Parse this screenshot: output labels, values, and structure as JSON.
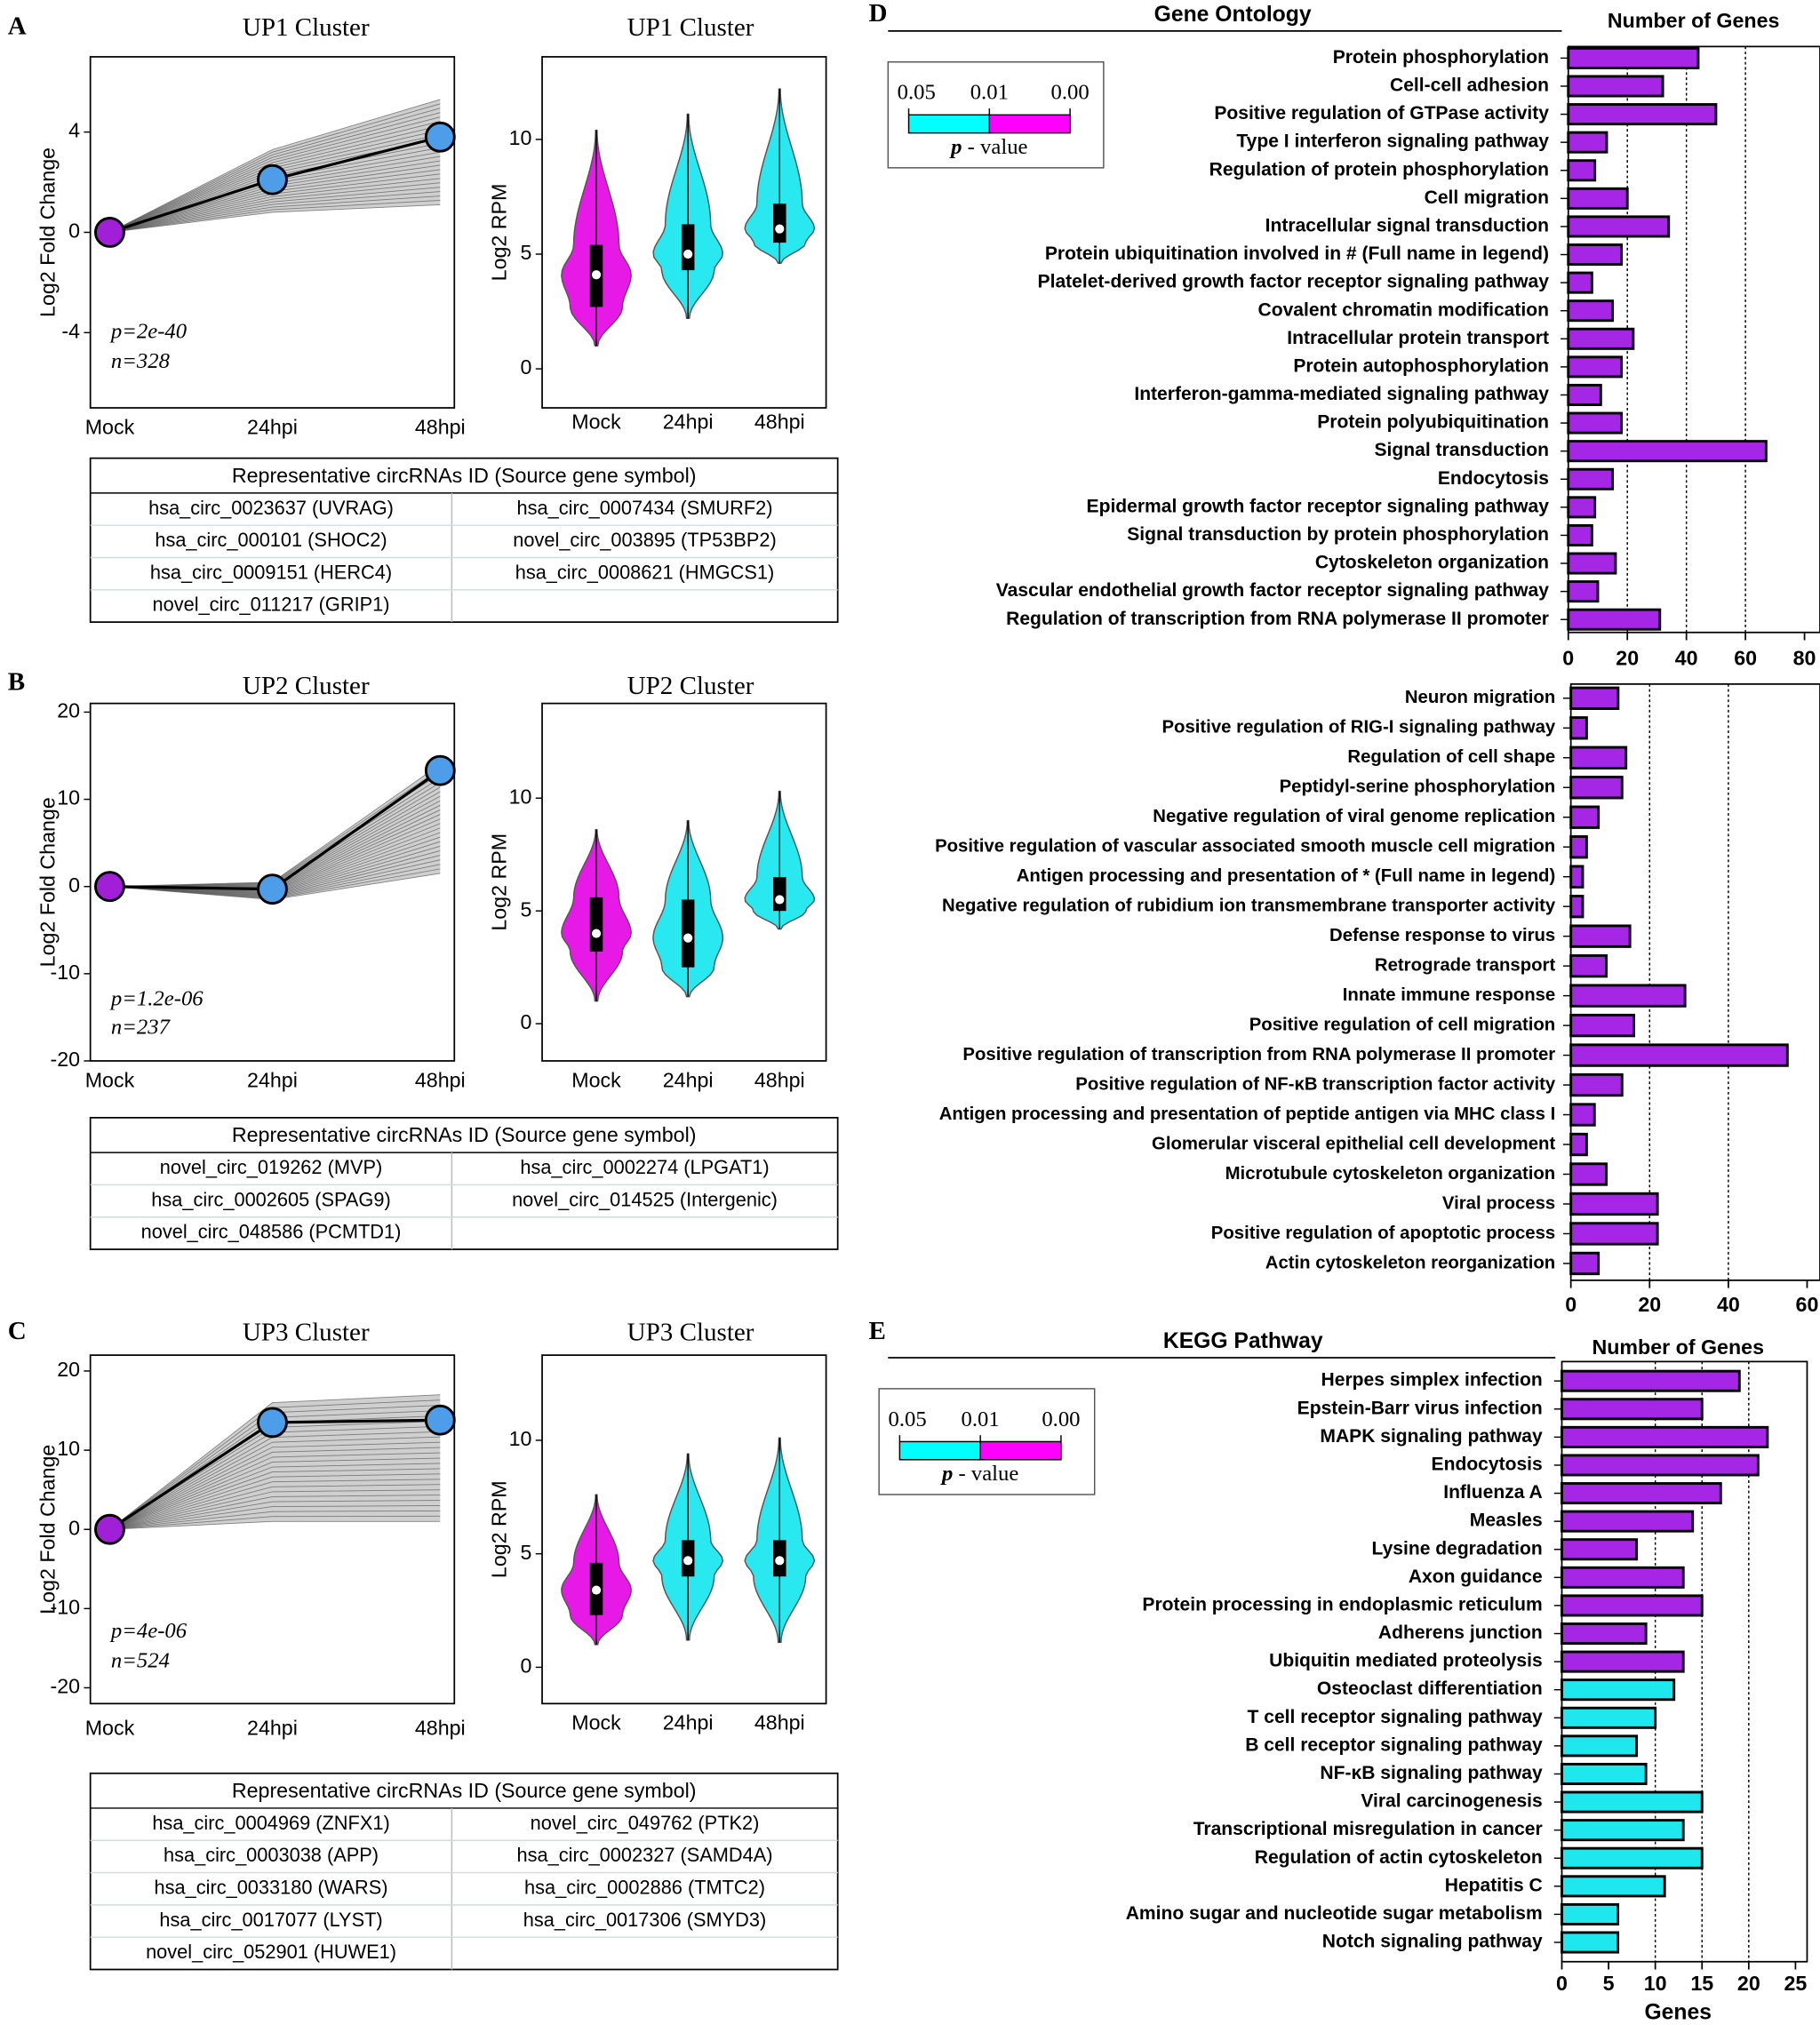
{
  "panel_labels": [
    "A",
    "B",
    "C",
    "D",
    "E"
  ],
  "chart_data": [
    {
      "type": "line",
      "title": "UP1 Cluster",
      "ylabel": "Log2 Fold Change",
      "categories": [
        "Mock",
        "24hpi",
        "48hpi"
      ],
      "values": [
        0,
        2.1,
        3.8
      ],
      "range_low": [
        0,
        0.8,
        1.1
      ],
      "range_high": [
        0,
        3.3,
        5.3
      ],
      "point_colors": [
        "#a21fd8",
        "#4d9de8",
        "#4d9de8"
      ],
      "annotations": [
        "p=2e-40",
        "n=328"
      ],
      "ylim": [
        -7,
        7
      ],
      "yticks": [
        -4,
        0,
        4
      ]
    },
    {
      "type": "violin",
      "title": "UP1 Cluster",
      "ylabel": "Log2 RPM",
      "categories": [
        "Mock",
        "24hpi",
        "48hpi"
      ],
      "min": [
        1.0,
        2.2,
        4.6
      ],
      "q1": [
        2.7,
        4.3,
        5.5
      ],
      "median": [
        4.1,
        5.0,
        6.1
      ],
      "q3": [
        5.4,
        6.3,
        7.2
      ],
      "max": [
        10.4,
        11.1,
        12.2
      ],
      "colors": [
        "#e619e6",
        "#2ae8f0",
        "#2ae8f0"
      ],
      "ylim": [
        -1.7,
        13.6
      ],
      "yticks": [
        0,
        5,
        10
      ]
    },
    {
      "type": "line",
      "title": "UP2 Cluster",
      "ylabel": "Log2 Fold Change",
      "categories": [
        "Mock",
        "24hpi",
        "48hpi"
      ],
      "values": [
        0,
        -0.3,
        13.3
      ],
      "range_low": [
        0,
        -1.5,
        1.5
      ],
      "range_high": [
        0,
        0.5,
        14
      ],
      "point_colors": [
        "#a21fd8",
        "#4d9de8",
        "#4d9de8"
      ],
      "annotations": [
        "p=1.2e-06",
        "n=237"
      ],
      "ylim": [
        -20,
        21
      ],
      "yticks": [
        -20,
        -10,
        0,
        10,
        20
      ]
    },
    {
      "type": "violin",
      "title": "UP2  Cluster",
      "ylabel": "Log2 RPM",
      "categories": [
        "Mock",
        "24hpi",
        "48hpi"
      ],
      "min": [
        1.0,
        1.2,
        4.2
      ],
      "q1": [
        3.2,
        2.5,
        5.0
      ],
      "median": [
        4.0,
        3.8,
        5.5
      ],
      "q3": [
        5.6,
        5.5,
        6.5
      ],
      "max": [
        8.6,
        9.0,
        10.3
      ],
      "colors": [
        "#e619e6",
        "#2ae8f0",
        "#2ae8f0"
      ],
      "ylim": [
        -1.65,
        14.2
      ],
      "yticks": [
        0,
        5,
        10
      ]
    },
    {
      "type": "line",
      "title": "UP3 Cluster",
      "ylabel": "Log2 Fold Change",
      "categories": [
        "Mock",
        "24hpi",
        "48hpi"
      ],
      "values": [
        0,
        13.5,
        13.8
      ],
      "range_low": [
        0,
        1,
        1
      ],
      "range_high": [
        0,
        16,
        17
      ],
      "point_colors": [
        "#a21fd8",
        "#4d9de8",
        "#4d9de8"
      ],
      "annotations": [
        "p=4e-06",
        "n=524"
      ],
      "ylim": [
        -22,
        22
      ],
      "yticks": [
        -20,
        -10,
        0,
        10,
        20
      ]
    },
    {
      "type": "violin",
      "title": "UP3 Cluster",
      "ylabel": "Log2 RPM",
      "categories": [
        "Mock",
        "24hpi",
        "48hpi"
      ],
      "min": [
        1.0,
        1.2,
        1.1
      ],
      "q1": [
        2.3,
        4.0,
        4.0
      ],
      "median": [
        3.4,
        4.7,
        4.7
      ],
      "q3": [
        4.6,
        5.6,
        5.6
      ],
      "max": [
        7.6,
        9.4,
        10.1
      ],
      "colors": [
        "#e619e6",
        "#2ae8f0",
        "#2ae8f0"
      ],
      "ylim": [
        -1.6,
        13.75
      ],
      "yticks": [
        0,
        5,
        10
      ]
    },
    {
      "type": "hbar",
      "title": "Gene Ontology",
      "xlabel_top": "Number of Genes",
      "categories": [
        "Protein phosphorylation",
        "Cell-cell adhesion",
        "Positive regulation of GTPase activity",
        "Type I interferon signaling pathway",
        "Regulation of protein phosphorylation",
        "Cell migration",
        "Intracellular signal transduction",
        "Protein ubiquitination involved in # (Full name in legend)",
        "Platelet-derived growth factor receptor signaling pathway",
        "Covalent chromatin modification",
        "Intracellular protein transport",
        "Protein autophosphorylation",
        "Interferon-gamma-mediated signaling pathway",
        "Protein polyubiquitination",
        "Signal transduction",
        "Endocytosis",
        "Epidermal growth factor receptor signaling pathway",
        "Signal transduction by protein phosphorylation",
        "Cytoskeleton organization",
        "Vascular endothelial growth factor receptor signaling pathway",
        "Regulation of transcription from RNA polymerase II promoter"
      ],
      "values": [
        44,
        32,
        50,
        13,
        9,
        20,
        34,
        18,
        8,
        15,
        22,
        18,
        11,
        18,
        67,
        15,
        9,
        8,
        16,
        10,
        31
      ],
      "colors": [
        "#a626e6",
        "#a626e6",
        "#a626e6",
        "#a626e6",
        "#a626e6",
        "#a626e6",
        "#a626e6",
        "#a626e6",
        "#a626e6",
        "#a626e6",
        "#a626e6",
        "#a626e6",
        "#a626e6",
        "#a626e6",
        "#a626e6",
        "#a626e6",
        "#a626e6",
        "#a626e6",
        "#a626e6",
        "#a626e6",
        "#a626e6"
      ],
      "label_colors": [
        "#000",
        "#000",
        "#000",
        "#33cc11",
        "#000",
        "#000",
        "#000",
        "#000",
        "#000",
        "#000",
        "#000",
        "#000",
        "#33cc11",
        "#000",
        "#000",
        "#000",
        "#000",
        "#000",
        "#000",
        "#000",
        "#000"
      ],
      "xlim": [
        0,
        80
      ],
      "xticks": [
        0,
        20,
        40,
        60,
        80
      ],
      "grid": [
        20,
        40,
        60
      ]
    },
    {
      "type": "hbar",
      "categories": [
        "Neuron migration",
        "Positive regulation of RIG-I signaling pathway",
        "Regulation of cell shape",
        "Peptidyl-serine phosphorylation",
        "Negative regulation of viral genome replication",
        "Positive regulation of vascular associated smooth muscle cell migration",
        "Antigen processing and presentation of * (Full name in  legend)",
        "Negative regulation of rubidium ion transmembrane transporter activity",
        "Defense response to virus",
        "Retrograde transport",
        "Innate immune response",
        "Positive regulation of cell migration",
        "Positive regulation of transcription from RNA polymerase II promoter",
        "Positive regulation of NF-κB transcription factor activity",
        "Antigen processing and presentation of peptide antigen via MHC class I",
        "Glomerular visceral epithelial cell development",
        "Microtubule cytoskeleton organization",
        "Viral process",
        "Positive regulation of apoptotic process",
        "Actin cytoskeleton reorganization"
      ],
      "values": [
        12,
        4,
        14,
        13,
        7,
        4,
        3,
        3,
        15,
        9,
        29,
        16,
        55,
        13,
        6,
        4,
        9,
        22,
        22,
        7
      ],
      "colors": [
        "#a626e6",
        "#a626e6",
        "#a626e6",
        "#a626e6",
        "#a626e6",
        "#a626e6",
        "#a626e6",
        "#a626e6",
        "#a626e6",
        "#a626e6",
        "#a626e6",
        "#a626e6",
        "#a626e6",
        "#a626e6",
        "#a626e6",
        "#a626e6",
        "#a626e6",
        "#a626e6",
        "#a626e6",
        "#a626e6"
      ],
      "label_colors": [
        "#000",
        "#33cc11",
        "#000",
        "#000",
        "#33cc11",
        "#000",
        "#000",
        "#000",
        "#33cc11",
        "#000",
        "#33cc11",
        "#000",
        "#000",
        "#33cc11",
        "#000",
        "#000",
        "#000",
        "#33cc11",
        "#000",
        "#000"
      ],
      "xlim": [
        0,
        60
      ],
      "xticks": [
        0,
        20,
        40,
        60
      ],
      "grid": [
        20,
        40
      ]
    },
    {
      "type": "hbar",
      "title": "KEGG Pathway",
      "xlabel_top": "Number of Genes",
      "xlabel": "Genes",
      "categories": [
        "Herpes simplex infection",
        "Epstein-Barr virus infection",
        "MAPK signaling pathway",
        "Endocytosis",
        "Influenza A",
        "Measles",
        "Lysine degradation",
        "Axon guidance",
        "Protein processing in endoplasmic reticulum",
        "Adherens junction",
        "Ubiquitin mediated proteolysis",
        "Osteoclast differentiation",
        "T cell receptor signaling pathway",
        "B cell receptor signaling pathway",
        "NF-κB signaling pathway",
        "Viral carcinogenesis",
        "Transcriptional misregulation in cancer",
        "Regulation of actin cytoskeleton",
        "Hepatitis C",
        "Amino sugar and nucleotide sugar metabolism",
        "Notch signaling pathway"
      ],
      "values": [
        19,
        15,
        22,
        21,
        17,
        14,
        8,
        13,
        15,
        9,
        13,
        12,
        10,
        8,
        9,
        15,
        13,
        15,
        11,
        6,
        6
      ],
      "colors": [
        "#a626e6",
        "#a626e6",
        "#a626e6",
        "#a626e6",
        "#a626e6",
        "#a626e6",
        "#a626e6",
        "#a626e6",
        "#a626e6",
        "#a626e6",
        "#a626e6",
        "#1ee8ee",
        "#1ee8ee",
        "#1ee8ee",
        "#1ee8ee",
        "#1ee8ee",
        "#1ee8ee",
        "#1ee8ee",
        "#1ee8ee",
        "#1ee8ee",
        "#1ee8ee"
      ],
      "label_colors": [
        "#33cc11",
        "#33cc11",
        "#000",
        "#000",
        "#33cc11",
        "#000",
        "#000",
        "#000",
        "#000",
        "#000",
        "#000",
        "#000",
        "#000",
        "#000",
        "#33cc11",
        "#000",
        "#000",
        "#000",
        "#33cc11",
        "#000",
        "#000"
      ],
      "xlim": [
        0,
        25
      ],
      "xticks": [
        0,
        5,
        10,
        15,
        20,
        25
      ],
      "grid": [
        10,
        15,
        20
      ]
    }
  ],
  "tables": [
    {
      "header": "Representative circRNAs ID (Source gene symbol)",
      "rows": [
        [
          "hsa_circ_0023637 (UVRAG)",
          "hsa_circ_0007434 (SMURF2)"
        ],
        [
          "hsa_circ_000101 (SHOC2)",
          "novel_circ_003895 (TP53BP2)"
        ],
        [
          "hsa_circ_0009151 (HERC4)",
          "hsa_circ_0008621 (HMGCS1)"
        ],
        [
          "novel_circ_011217 (GRIP1)"
        ]
      ]
    },
    {
      "header": "Representative circRNAs ID (Source gene symbol)",
      "rows": [
        [
          "novel_circ_019262 (MVP)",
          "hsa_circ_0002274 (LPGAT1)"
        ],
        [
          "hsa_circ_0002605 (SPAG9)",
          "novel_circ_014525 (Intergenic)"
        ],
        [
          "novel_circ_048586 (PCMTD1)"
        ]
      ]
    },
    {
      "header": "Representative circRNAs ID (Source gene symbol)",
      "rows": [
        [
          "hsa_circ_0004969 (ZNFX1)",
          "novel_circ_049762 (PTK2)"
        ],
        [
          "hsa_circ_0003038 (APP)",
          "hsa_circ_0002327 (SAMD4A)"
        ],
        [
          "hsa_circ_0033180 (WARS)",
          "hsa_circ_0002886 (TMTC2)"
        ],
        [
          "hsa_circ_0017077 (LYST)",
          "hsa_circ_0017306 (SMYD3)"
        ],
        [
          "novel_circ_052901 (HUWE1)"
        ]
      ]
    }
  ],
  "legends": [
    {
      "labels": [
        "0.05",
        "0.01",
        "0.00"
      ],
      "colors": [
        "#00ffff",
        "#ff00ff"
      ],
      "title": "p",
      "title_suffix": " - value"
    },
    {
      "labels": [
        "0.05",
        "0.01",
        "0.00"
      ],
      "colors": [
        "#00ffff",
        "#ff00ff"
      ],
      "title": "p",
      "title_suffix": " - value"
    }
  ]
}
